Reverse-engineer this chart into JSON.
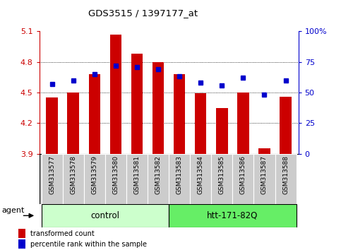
{
  "title": "GDS3515 / 1397177_at",
  "samples": [
    "GSM313577",
    "GSM313578",
    "GSM313579",
    "GSM313580",
    "GSM313581",
    "GSM313582",
    "GSM313583",
    "GSM313584",
    "GSM313585",
    "GSM313586",
    "GSM313587",
    "GSM313588"
  ],
  "red_values": [
    4.45,
    4.5,
    4.68,
    5.07,
    4.88,
    4.8,
    4.68,
    4.49,
    4.35,
    4.5,
    3.95,
    4.46
  ],
  "blue_values_pct": [
    57,
    60,
    65,
    72,
    71,
    69,
    63,
    58,
    56,
    62,
    48,
    60
  ],
  "y_min": 3.9,
  "y_max": 5.1,
  "y_ticks": [
    3.9,
    4.2,
    4.5,
    4.8,
    5.1
  ],
  "y2_ticks": [
    0,
    25,
    50,
    75,
    100
  ],
  "red_color": "#cc0000",
  "blue_color": "#0000cc",
  "bar_width": 0.55,
  "control_group_n": 6,
  "treatment_group_n": 6,
  "control_label": "control",
  "treatment_label": "htt-171-82Q",
  "agent_label": "agent",
  "legend_red": "transformed count",
  "legend_blue": "percentile rank within the sample",
  "control_color": "#ccffcc",
  "treatment_color": "#66ee66",
  "label_bg": "#cccccc"
}
